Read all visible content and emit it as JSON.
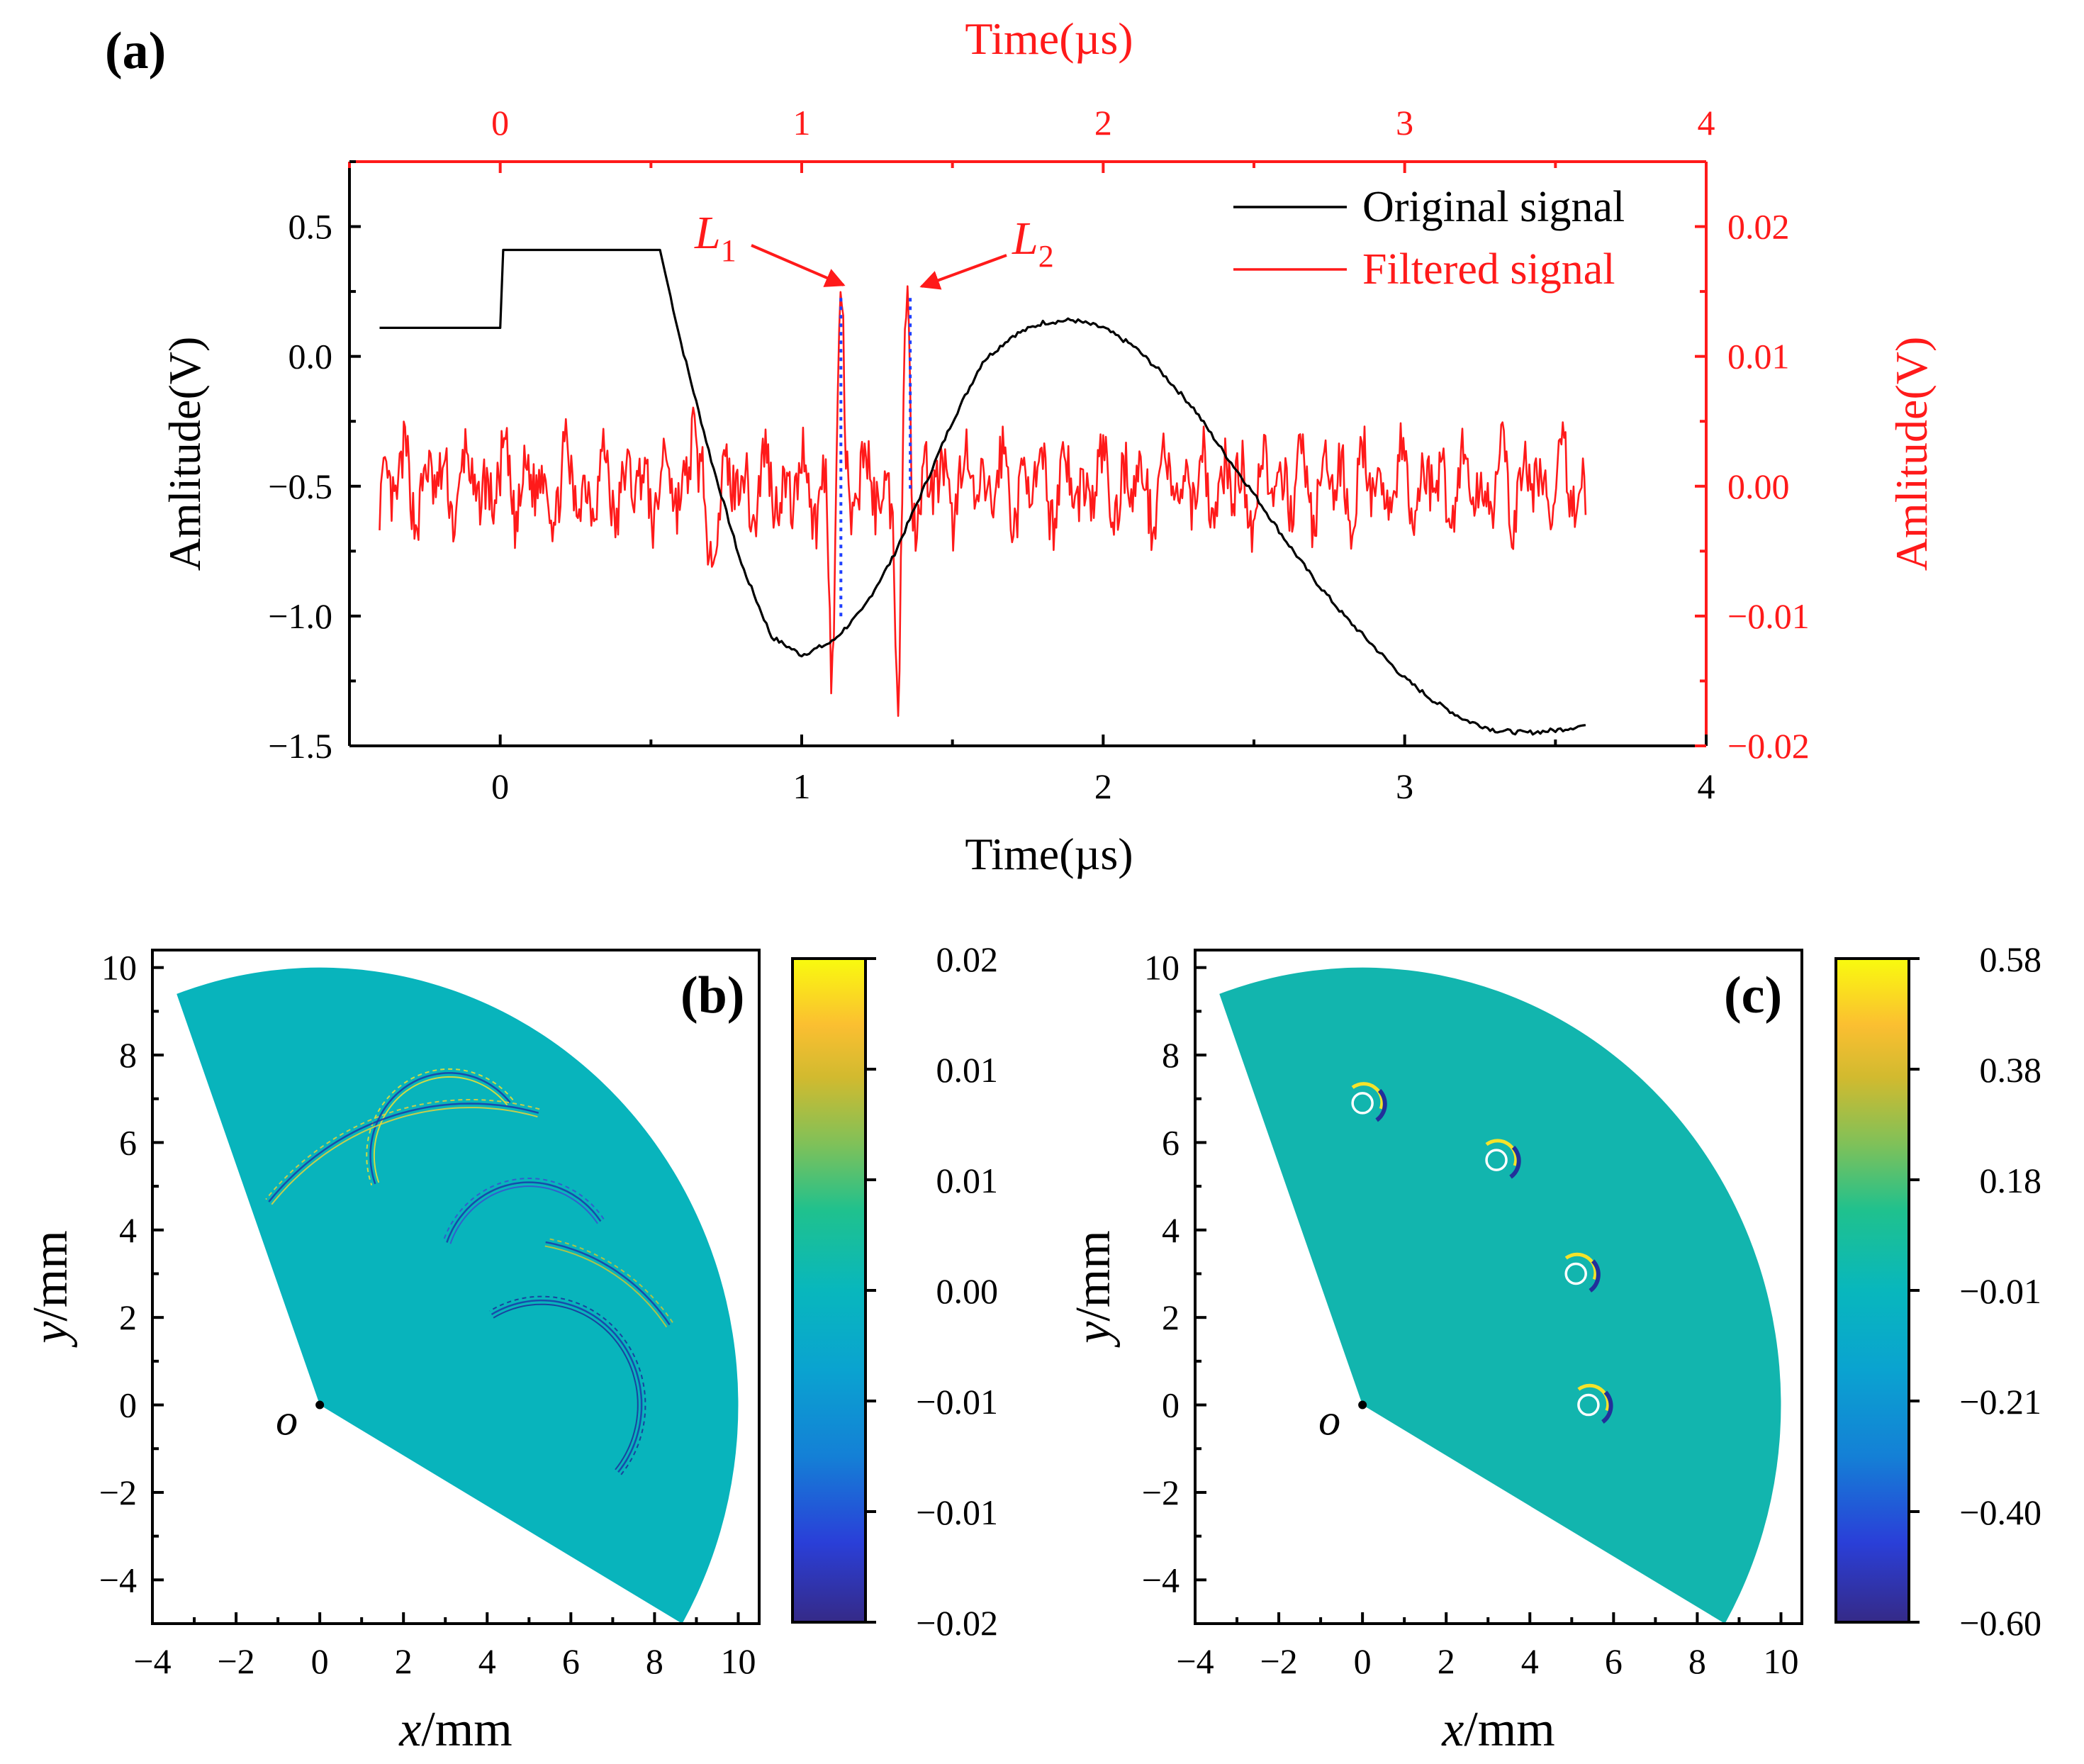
{
  "chart_data": [
    {
      "panel": "(a)",
      "type": "line",
      "xlabel_bottom": "Time(µs)",
      "xlabel_top": "Time(µs)",
      "ylabel_left": "Amlitude(V)",
      "ylabel_right": "Amlitude(V)",
      "xlim": [
        -0.5,
        4
      ],
      "ylim_left": [
        -1.5,
        0.75
      ],
      "ylim_right": [
        -0.02,
        0.025
      ],
      "xticks": [
        "0",
        "1",
        "2",
        "3",
        "4"
      ],
      "xtick_values": [
        0,
        1,
        2,
        3,
        4
      ],
      "yticks_left": [
        "0.5",
        "0.0",
        "−0.5",
        "−1.0",
        "−1.5"
      ],
      "ytick_left_values": [
        0.5,
        0.0,
        -0.5,
        -1.0,
        -1.5
      ],
      "yticks_right": [
        "0.02",
        "0.01",
        "0.00",
        "−0.01",
        "−0.02"
      ],
      "ytick_right_values": [
        0.02,
        0.01,
        0.0,
        -0.01,
        -0.02
      ],
      "legend": [
        "Original signal",
        "Filtered signal"
      ],
      "legend_position": "top-right",
      "colors": {
        "original": "#000000",
        "filtered": "#ff1a1a",
        "marker_lines": "#1f3fff"
      },
      "series": [
        {
          "name": "Original signal",
          "axis": "left",
          "x": [
            -0.4,
            -0.2,
            0.0,
            0.01,
            0.3,
            0.53,
            0.6,
            0.7,
            0.8,
            0.9,
            1.0,
            1.1,
            1.2,
            1.3,
            1.4,
            1.5,
            1.6,
            1.7,
            1.8,
            1.9,
            2.0,
            2.1,
            2.2,
            2.3,
            2.4,
            2.5,
            2.6,
            2.7,
            2.8,
            2.9,
            3.0,
            3.1,
            3.2,
            3.3,
            3.4,
            3.5,
            3.6
          ],
          "y": [
            0.11,
            0.11,
            0.11,
            0.41,
            0.41,
            0.41,
            0.05,
            -0.4,
            -0.8,
            -1.08,
            -1.15,
            -1.1,
            -0.98,
            -0.78,
            -0.52,
            -0.25,
            -0.02,
            0.08,
            0.13,
            0.14,
            0.11,
            0.04,
            -0.07,
            -0.2,
            -0.37,
            -0.53,
            -0.7,
            -0.86,
            -1.0,
            -1.12,
            -1.24,
            -1.33,
            -1.4,
            -1.44,
            -1.45,
            -1.44,
            -1.42
          ]
        },
        {
          "name": "Filtered signal",
          "axis": "right",
          "x_range": [
            -0.4,
            3.6
          ],
          "noise_amplitude": 0.004,
          "peaks": [
            {
              "x": 1.13,
              "y": 0.0145
            },
            {
              "x": 1.1,
              "y": -0.0145
            },
            {
              "x": 1.35,
              "y": 0.014
            },
            {
              "x": 1.32,
              "y": -0.0165
            },
            {
              "x": 0.69,
              "y": -0.0085
            },
            {
              "x": 0.64,
              "y": 0.006
            }
          ]
        }
      ],
      "annotations": [
        {
          "label": "L",
          "subscript": "1",
          "x": 1.13,
          "y_right": 0.0145
        },
        {
          "label": "L",
          "subscript": "2",
          "x": 1.36,
          "y_right": 0.0145
        }
      ]
    },
    {
      "panel": "(b)",
      "type": "heatmap",
      "xlabel_italic": "x",
      "xlabel_unit": "/mm",
      "ylabel_italic": "y",
      "ylabel_unit": "/mm",
      "xlim": [
        -4,
        10.5
      ],
      "ylim": [
        -5,
        10.4
      ],
      "xticks": [
        "−4",
        "−2",
        "0",
        "2",
        "4",
        "6",
        "8",
        "10"
      ],
      "xtick_values": [
        -4,
        -2,
        0,
        2,
        4,
        6,
        8,
        10
      ],
      "yticks": [
        "10",
        "8",
        "6",
        "4",
        "2",
        "0",
        "−2",
        "−4"
      ],
      "ytick_values": [
        10,
        8,
        6,
        4,
        2,
        0,
        -2,
        -4
      ],
      "sector": {
        "radius": 10,
        "start_angle_deg": -30,
        "end_angle_deg": 110
      },
      "origin_label": "o",
      "colorbar_ticks": [
        "0.02",
        "0.01",
        "0.01",
        "0.00",
        "−0.01",
        "−0.01",
        "−0.02"
      ],
      "colorbar_range": [
        -0.02,
        0.02
      ],
      "arcs": [
        {
          "cx": 3.1,
          "cy": 5.7,
          "r": 1.8,
          "a0": 40,
          "a1": 200
        },
        {
          "cx": 5.0,
          "cy": 3.0,
          "r": 2.0,
          "a0": 35,
          "a1": 160
        },
        {
          "cx": 5.3,
          "cy": 0.0,
          "r": 2.3,
          "a0": -40,
          "a1": 120
        },
        {
          "cx": 3.6,
          "cy": 0.6,
          "r": 6.2,
          "a0": 75,
          "a1": 140
        },
        {
          "cx": 4.6,
          "cy": -0.8,
          "r": 4.5,
          "a0": 35,
          "a1": 80
        }
      ]
    },
    {
      "panel": "(c)",
      "type": "heatmap",
      "xlabel_italic": "x",
      "xlabel_unit": "/mm",
      "ylabel_italic": "y",
      "ylabel_unit": "/mm",
      "xlim": [
        -4,
        10.5
      ],
      "ylim": [
        -5,
        10.4
      ],
      "xticks": [
        "−4",
        "−2",
        "0",
        "2",
        "4",
        "6",
        "8",
        "10"
      ],
      "xtick_values": [
        -4,
        -2,
        0,
        2,
        4,
        6,
        8,
        10
      ],
      "yticks": [
        "10",
        "8",
        "6",
        "4",
        "2",
        "0",
        "−2",
        "−4"
      ],
      "ytick_values": [
        10,
        8,
        6,
        4,
        2,
        0,
        -2,
        -4
      ],
      "sector": {
        "radius": 10,
        "start_angle_deg": -30,
        "end_angle_deg": 110
      },
      "origin_label": "o",
      "colorbar_ticks": [
        "0.58",
        "0.38",
        "0.18",
        "−0.01",
        "−0.21",
        "−0.40",
        "−0.60"
      ],
      "colorbar_range": [
        -0.6,
        0.58
      ],
      "defects": [
        {
          "x": 0.0,
          "y": 6.9
        },
        {
          "x": 3.2,
          "y": 5.6
        },
        {
          "x": 5.1,
          "y": 3.0
        },
        {
          "x": 5.4,
          "y": 0.0
        }
      ]
    }
  ]
}
